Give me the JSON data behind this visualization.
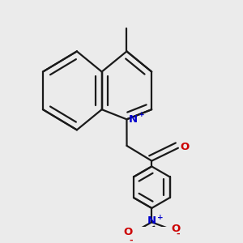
{
  "bg_color": "#ebebeb",
  "bond_color": "#1a1a1a",
  "lw": 1.6,
  "atom_colors": {
    "N": "#0000cc",
    "O": "#cc0000"
  },
  "xlim": [
    0.0,
    1.0
  ],
  "ylim": [
    0.0,
    1.0
  ]
}
